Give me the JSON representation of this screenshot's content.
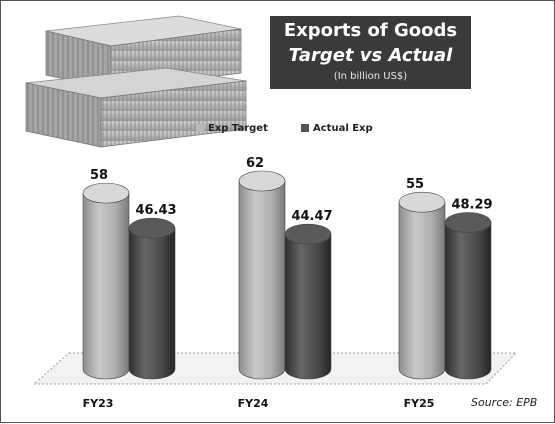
{
  "title": {
    "line1": "Exports of Goods",
    "line2": "Target vs Actual",
    "line3": "(In billion US$)"
  },
  "legend": [
    {
      "label": "Exp Target",
      "color": "#b9b9b9"
    },
    {
      "label": "Actual Exp",
      "color": "#555555"
    }
  ],
  "source": "Source: EPB",
  "colors": {
    "target": "#b3b3b3",
    "actual": "#525252",
    "background": "#ffffff"
  },
  "chart_data": {
    "type": "bar",
    "title": "Exports of Goods Target vs Actual",
    "subtitle": "(In billion US$)",
    "categories": [
      "FY23",
      "FY24",
      "FY25"
    ],
    "series": [
      {
        "name": "Exp Target",
        "values": [
          58,
          62,
          55
        ]
      },
      {
        "name": "Actual Exp",
        "values": [
          46.43,
          44.47,
          48.29
        ]
      }
    ],
    "value_labels": [
      [
        "58",
        "46.43"
      ],
      [
        "62",
        "44.47"
      ],
      [
        "55",
        "48.29"
      ]
    ],
    "ylim": [
      0,
      62
    ],
    "grid": false,
    "legend_position": "top",
    "style": "3d-cylinder"
  }
}
